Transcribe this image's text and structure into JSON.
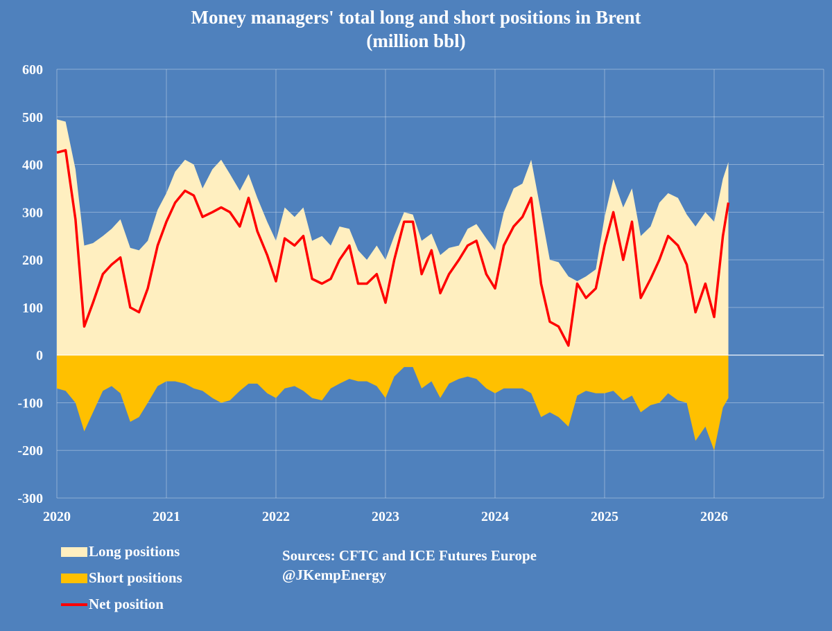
{
  "chart_data": {
    "type": "area",
    "title": "Money managers' total long and short positions in Brent",
    "subtitle": "(million bbl)",
    "xlabel": "",
    "ylabel": "",
    "xlim": [
      2020,
      2027
    ],
    "ylim": [
      -300,
      600
    ],
    "x_ticks": [
      "2020",
      "2021",
      "2022",
      "2023",
      "2024",
      "2025",
      "2026"
    ],
    "y_ticks": [
      600,
      500,
      400,
      300,
      200,
      100,
      0,
      -100,
      -200,
      -300
    ],
    "grid": true,
    "legend_position": "bottom-left",
    "colors": {
      "background": "#4F81BD",
      "long": "#FFEFC0",
      "short": "#FFC000",
      "net": "#FF0000"
    },
    "x": [
      2020.0,
      2020.08,
      2020.17,
      2020.25,
      2020.33,
      2020.42,
      2020.5,
      2020.58,
      2020.67,
      2020.75,
      2020.83,
      2020.92,
      2021.0,
      2021.08,
      2021.17,
      2021.25,
      2021.33,
      2021.42,
      2021.5,
      2021.58,
      2021.67,
      2021.75,
      2021.83,
      2021.92,
      2022.0,
      2022.08,
      2022.17,
      2022.25,
      2022.33,
      2022.42,
      2022.5,
      2022.58,
      2022.67,
      2022.75,
      2022.83,
      2022.92,
      2023.0,
      2023.08,
      2023.17,
      2023.25,
      2023.33,
      2023.42,
      2023.5,
      2023.58,
      2023.67,
      2023.75,
      2023.83,
      2023.92,
      2024.0,
      2024.08,
      2024.17,
      2024.25,
      2024.33,
      2024.42,
      2024.5,
      2024.58,
      2024.67,
      2024.75,
      2024.83,
      2024.92,
      2025.0,
      2025.08,
      2025.17,
      2025.25,
      2025.33,
      2025.42,
      2025.5,
      2025.58,
      2025.67,
      2025.75,
      2025.83,
      2025.92,
      2026.0,
      2026.08,
      2026.13
    ],
    "series": [
      {
        "name": "Long positions",
        "type": "area",
        "values": [
          495,
          490,
          390,
          230,
          235,
          250,
          265,
          285,
          225,
          220,
          240,
          305,
          340,
          385,
          410,
          400,
          350,
          390,
          410,
          380,
          345,
          380,
          330,
          280,
          240,
          310,
          290,
          310,
          240,
          250,
          230,
          270,
          265,
          220,
          200,
          230,
          200,
          250,
          300,
          295,
          240,
          255,
          210,
          225,
          230,
          265,
          275,
          245,
          220,
          300,
          350,
          360,
          410,
          300,
          200,
          195,
          165,
          155,
          165,
          180,
          290,
          370,
          310,
          350,
          250,
          270,
          320,
          340,
          330,
          295,
          270,
          300,
          280,
          370,
          405
        ]
      },
      {
        "name": "Short positions",
        "type": "area",
        "values": [
          -70,
          -75,
          -100,
          -160,
          -120,
          -75,
          -65,
          -80,
          -140,
          -130,
          -100,
          -65,
          -55,
          -55,
          -60,
          -70,
          -75,
          -90,
          -100,
          -95,
          -75,
          -60,
          -60,
          -80,
          -90,
          -70,
          -65,
          -75,
          -90,
          -95,
          -70,
          -60,
          -50,
          -55,
          -55,
          -65,
          -90,
          -45,
          -25,
          -25,
          -70,
          -55,
          -90,
          -60,
          -50,
          -45,
          -50,
          -70,
          -80,
          -70,
          -70,
          -70,
          -80,
          -130,
          -120,
          -130,
          -150,
          -85,
          -75,
          -80,
          -80,
          -75,
          -95,
          -85,
          -120,
          -105,
          -100,
          -80,
          -95,
          -100,
          -180,
          -150,
          -200,
          -110,
          -90
        ]
      },
      {
        "name": "Net position",
        "type": "line",
        "values": [
          425,
          430,
          285,
          60,
          110,
          170,
          190,
          205,
          100,
          90,
          140,
          230,
          280,
          320,
          345,
          335,
          290,
          300,
          310,
          300,
          270,
          330,
          260,
          210,
          155,
          245,
          230,
          250,
          160,
          150,
          160,
          200,
          230,
          150,
          150,
          170,
          110,
          200,
          280,
          280,
          170,
          220,
          130,
          170,
          200,
          230,
          240,
          170,
          140,
          230,
          270,
          290,
          330,
          150,
          70,
          60,
          20,
          150,
          120,
          140,
          230,
          300,
          200,
          280,
          120,
          160,
          200,
          250,
          230,
          190,
          90,
          150,
          80,
          250,
          320
        ]
      }
    ]
  },
  "legend": {
    "long": "Long positions",
    "short": "Short positions",
    "net": "Net position"
  },
  "sources": {
    "line1": "Sources: CFTC and ICE Futures Europe",
    "line2": "@JKempEnergy"
  }
}
